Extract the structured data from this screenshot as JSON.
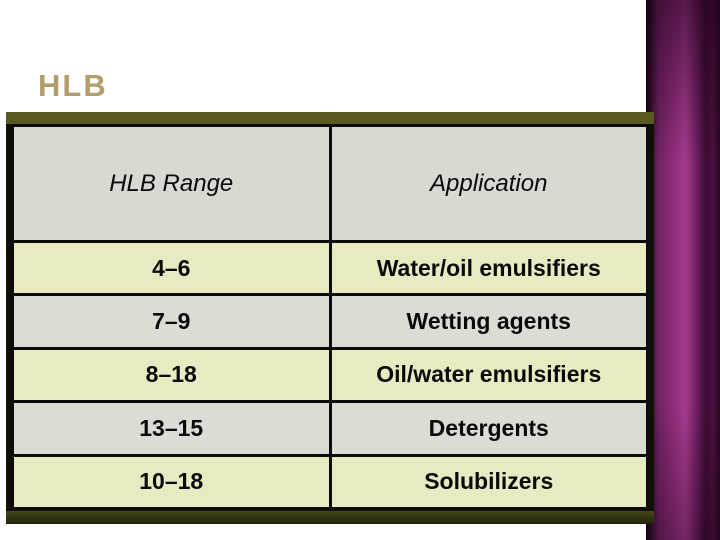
{
  "slide": {
    "title": "HLB"
  },
  "table": {
    "headers": {
      "range": "HLB Range",
      "application": "Application"
    },
    "rows": [
      {
        "range": "4–6",
        "application": "Water/oil emulsifiers"
      },
      {
        "range": "7–9",
        "application": "Wetting agents"
      },
      {
        "range": "8–18",
        "application": "Oil/water emulsifiers"
      },
      {
        "range": "13–15",
        "application": "Detergents"
      },
      {
        "range": "10–18",
        "application": "Solubilizers"
      }
    ]
  },
  "colors": {
    "title_text": "#b49d6b",
    "row_yellow": "#e9e9c2",
    "row_gray": "#dcdcd4",
    "header_bg": "#d9d9d1",
    "table_border": "#0c0c0c",
    "olive_strip": "#5a5a1e",
    "purple_accent": "#a43c8e",
    "purple_dark": "#2a0724"
  }
}
